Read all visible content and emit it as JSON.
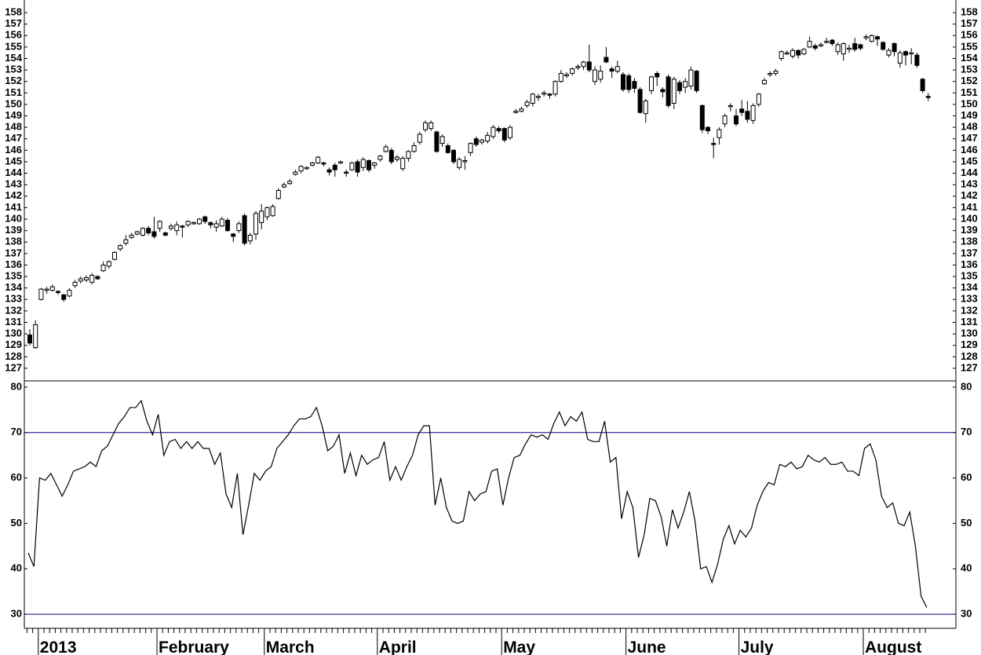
{
  "chart_data": [
    {
      "type": "candlestick",
      "open": [
        129.9,
        128.8,
        133.0,
        133.8,
        133.8,
        133.7,
        133.4,
        133.3,
        134.2,
        134.6,
        134.7,
        134.5,
        135.0,
        135.5,
        135.9,
        136.5,
        137.4,
        137.9,
        138.4,
        138.7,
        138.6,
        139.2,
        138.9,
        139.2,
        138.8,
        139.2,
        139.0,
        139.4,
        139.5,
        139.6,
        139.6,
        140.2,
        139.7,
        139.3,
        139.4,
        139.9,
        138.7,
        139.0,
        140.3,
        138.1,
        138.7,
        139.7,
        140.2,
        140.3,
        141.8,
        142.8,
        143.1,
        143.9,
        144.2,
        144.4,
        144.7,
        144.9,
        144.9,
        144.3,
        144.7,
        144.9,
        144.1,
        144.3,
        145.0,
        144.5,
        145.1,
        144.7,
        145.2,
        145.9,
        146.0,
        145.2,
        144.4,
        145.3,
        145.9,
        146.7,
        147.8,
        147.9,
        147.6,
        146.6,
        146.4,
        146.0,
        144.5,
        145.0,
        145.8,
        147.0,
        146.7,
        146.8,
        147.2,
        147.9,
        147.9,
        147.1,
        149.3,
        149.4,
        149.9,
        150.1,
        150.6,
        150.9,
        150.9,
        150.9,
        152.0,
        152.5,
        152.7,
        153.2,
        153.3,
        153.7,
        152.0,
        152.2,
        154.1,
        153.1,
        152.9,
        152.6,
        152.5,
        152.0,
        151.3,
        149.2,
        151.2,
        152.7,
        151.3,
        152.4,
        150.1,
        151.9,
        151.5,
        151.6,
        152.9,
        149.9,
        148.0,
        146.6,
        147.1,
        148.3,
        149.8,
        149.0,
        149.6,
        149.4,
        148.6,
        150.0,
        151.8,
        152.6,
        152.7,
        154.0,
        154.4,
        154.2,
        154.7,
        154.4,
        155.0,
        155.1,
        155.1,
        155.4,
        155.6,
        154.6,
        154.4,
        154.8,
        155.3,
        155.2,
        155.8,
        155.5,
        155.9,
        155.4,
        154.3,
        155.3,
        153.6,
        154.6,
        154.4,
        154.3,
        152.2,
        150.7
      ],
      "high": [
        130.4,
        131.2,
        134.0,
        134.1,
        134.3,
        133.8,
        133.5,
        134.0,
        134.7,
        135.0,
        135.1,
        135.3,
        135.1,
        136.3,
        136.4,
        137.2,
        137.8,
        138.6,
        138.8,
        139.0,
        139.3,
        139.4,
        140.2,
        139.9,
        138.9,
        139.6,
        139.8,
        139.5,
        139.9,
        139.8,
        140.1,
        140.3,
        139.8,
        139.9,
        140.2,
        140.1,
        138.8,
        139.8,
        140.5,
        138.8,
        140.7,
        141.3,
        141.1,
        141.3,
        142.7,
        143.2,
        143.5,
        144.3,
        144.7,
        144.6,
        145.0,
        145.5,
        145.0,
        144.5,
        144.9,
        145.1,
        144.3,
        145.0,
        145.2,
        145.4,
        145.2,
        145.0,
        145.6,
        146.5,
        146.2,
        145.6,
        145.5,
        146.0,
        146.7,
        147.6,
        148.6,
        148.6,
        147.7,
        147.4,
        146.6,
        146.1,
        145.4,
        145.5,
        146.7,
        147.2,
        147.0,
        147.6,
        148.2,
        148.1,
        148.0,
        148.2,
        149.6,
        149.8,
        150.4,
        151.0,
        150.9,
        151.2,
        151.0,
        152.1,
        153.0,
        152.8,
        153.2,
        153.5,
        153.8,
        155.2,
        153.3,
        153.4,
        155.0,
        153.3,
        153.8,
        152.8,
        152.7,
        152.3,
        151.5,
        150.5,
        152.5,
        152.9,
        151.5,
        152.6,
        152.4,
        152.1,
        152.3,
        153.3,
        153.0,
        150.0,
        148.1,
        147.1,
        148.0,
        149.2,
        150.1,
        149.6,
        150.4,
        150.3,
        150.1,
        151.0,
        152.3,
        152.9,
        153.1,
        154.7,
        154.7,
        154.9,
        154.8,
        154.9,
        155.9,
        155.3,
        155.4,
        155.8,
        155.7,
        155.4,
        155.4,
        155.2,
        155.8,
        155.3,
        156.1,
        156.1,
        156.0,
        155.5,
        154.9,
        155.4,
        154.7,
        154.7,
        154.9,
        154.5,
        152.3,
        151.0
      ],
      "low": [
        129.0,
        128.7,
        132.9,
        133.5,
        133.7,
        133.4,
        132.8,
        133.2,
        134.0,
        134.4,
        134.5,
        134.3,
        134.7,
        135.4,
        135.7,
        136.4,
        137.2,
        137.7,
        138.3,
        138.6,
        138.5,
        138.6,
        138.3,
        138.9,
        138.5,
        139.0,
        138.6,
        138.4,
        139.3,
        139.5,
        139.5,
        139.6,
        139.2,
        138.9,
        139.3,
        138.9,
        138.0,
        138.8,
        137.7,
        137.8,
        138.2,
        139.1,
        139.9,
        140.2,
        141.7,
        142.7,
        143.0,
        143.8,
        144.0,
        144.3,
        144.6,
        144.8,
        144.6,
        143.8,
        143.7,
        144.8,
        143.7,
        144.2,
        143.7,
        144.2,
        144.1,
        144.4,
        145.0,
        145.8,
        144.8,
        145.0,
        144.2,
        145.0,
        145.8,
        146.5,
        147.6,
        147.7,
        145.8,
        146.3,
        145.7,
        144.8,
        144.3,
        144.3,
        145.5,
        146.3,
        146.5,
        146.6,
        147.0,
        147.5,
        146.7,
        146.9,
        149.2,
        149.3,
        149.7,
        149.8,
        150.3,
        150.7,
        150.5,
        150.7,
        151.9,
        152.3,
        152.5,
        153.0,
        153.0,
        152.8,
        151.7,
        151.9,
        153.6,
        152.3,
        152.7,
        151.1,
        151.0,
        151.0,
        149.2,
        148.4,
        150.9,
        151.6,
        150.6,
        149.7,
        149.6,
        150.9,
        151.0,
        151.3,
        151.0,
        147.5,
        147.4,
        145.3,
        146.5,
        148.0,
        149.4,
        148.1,
        149.0,
        148.4,
        148.3,
        149.8,
        151.7,
        152.4,
        152.5,
        153.8,
        154.3,
        154.0,
        154.0,
        154.3,
        154.9,
        154.7,
        155.0,
        155.3,
        155.1,
        154.3,
        153.8,
        154.5,
        154.6,
        154.7,
        155.6,
        155.4,
        155.1,
        154.7,
        154.1,
        154.2,
        153.2,
        153.4,
        153.5,
        153.2,
        151.0,
        150.3
      ],
      "close": [
        129.2,
        130.8,
        133.9,
        133.9,
        134.1,
        133.6,
        133.0,
        133.8,
        134.5,
        134.8,
        134.9,
        135.1,
        134.8,
        136.0,
        136.3,
        137.1,
        137.7,
        138.2,
        138.6,
        138.9,
        139.2,
        138.8,
        138.5,
        139.8,
        138.6,
        139.4,
        139.5,
        139.3,
        139.8,
        139.7,
        140.0,
        139.8,
        139.5,
        139.6,
        140.0,
        139.0,
        138.5,
        139.6,
        137.9,
        138.6,
        140.5,
        140.7,
        141.0,
        141.1,
        142.5,
        143.0,
        143.3,
        144.1,
        144.6,
        144.5,
        144.9,
        145.4,
        144.8,
        144.1,
        144.3,
        145.0,
        144.0,
        144.9,
        144.1,
        145.2,
        144.3,
        144.9,
        145.5,
        146.3,
        145.0,
        145.4,
        145.3,
        145.9,
        146.4,
        147.4,
        148.4,
        148.4,
        145.9,
        147.2,
        145.8,
        145.0,
        145.2,
        145.1,
        146.6,
        146.5,
        146.9,
        147.3,
        148.0,
        147.7,
        146.9,
        148.0,
        149.4,
        149.6,
        150.2,
        150.9,
        150.7,
        151.0,
        150.8,
        152.0,
        152.7,
        152.6,
        153.1,
        153.3,
        153.7,
        153.0,
        153.0,
        152.9,
        153.7,
        152.9,
        153.3,
        151.3,
        151.3,
        151.4,
        149.3,
        150.3,
        152.4,
        152.4,
        151.1,
        149.9,
        152.2,
        151.2,
        152.0,
        153.0,
        151.2,
        147.8,
        147.7,
        146.5,
        147.8,
        149.0,
        149.9,
        148.3,
        149.3,
        148.7,
        149.9,
        150.9,
        152.1,
        152.7,
        152.9,
        154.6,
        154.5,
        154.7,
        154.3,
        154.8,
        155.5,
        154.9,
        155.2,
        155.5,
        155.3,
        155.2,
        155.3,
        154.9,
        154.8,
        154.9,
        155.9,
        156.0,
        155.7,
        154.8,
        154.7,
        154.6,
        154.5,
        154.3,
        154.5,
        153.4,
        151.2,
        150.6
      ],
      "up_color": "#ffffff",
      "down_color": "#000000",
      "ylim": [
        125.9,
        159.1
      ],
      "yticks": [
        127,
        128,
        129,
        130,
        131,
        132,
        133,
        134,
        135,
        136,
        137,
        138,
        139,
        140,
        141,
        142,
        143,
        144,
        145,
        146,
        147,
        148,
        149,
        150,
        151,
        152,
        153,
        154,
        155,
        156,
        157,
        158
      ]
    },
    {
      "type": "line",
      "categories": [
        null,
        null,
        "2013",
        null,
        null,
        null,
        null,
        null,
        null,
        null,
        null,
        null,
        null,
        null,
        null,
        null,
        null,
        null,
        null,
        null,
        null,
        null,
        null,
        "February",
        null,
        null,
        null,
        null,
        null,
        null,
        null,
        null,
        null,
        null,
        null,
        null,
        null,
        null,
        null,
        null,
        null,
        null,
        "March",
        null,
        null,
        null,
        null,
        null,
        null,
        null,
        null,
        null,
        null,
        null,
        null,
        null,
        null,
        null,
        null,
        null,
        null,
        null,
        "April",
        null,
        null,
        null,
        null,
        null,
        null,
        null,
        null,
        null,
        null,
        null,
        null,
        null,
        null,
        null,
        null,
        null,
        null,
        null,
        null,
        null,
        "May",
        null,
        null,
        null,
        null,
        null,
        null,
        null,
        null,
        null,
        null,
        null,
        null,
        null,
        null,
        null,
        null,
        null,
        null,
        null,
        null,
        null,
        "June",
        null,
        null,
        null,
        null,
        null,
        null,
        null,
        null,
        null,
        null,
        null,
        null,
        null,
        null,
        null,
        null,
        null,
        null,
        null,
        "July",
        null,
        null,
        null,
        null,
        null,
        null,
        null,
        null,
        null,
        null,
        null,
        null,
        null,
        null,
        null,
        null,
        null,
        null,
        null,
        null,
        null,
        "August",
        null,
        null,
        null,
        null,
        null,
        null,
        null,
        null,
        null,
        null,
        null
      ],
      "values": [
        43.5,
        40.5,
        60,
        59.5,
        61,
        58.5,
        56,
        58.5,
        61.5,
        62,
        62.5,
        63.5,
        62.5,
        66,
        67,
        69.5,
        72,
        73.5,
        75.5,
        75.5,
        77,
        72.5,
        69.5,
        74,
        65,
        68,
        68.5,
        66.5,
        68,
        66.5,
        68,
        66.5,
        66.5,
        63,
        65.5,
        56.5,
        53.5,
        61,
        47.5,
        54,
        61,
        59.5,
        61.5,
        62.5,
        66.5,
        68,
        69.5,
        71.5,
        73,
        73,
        73.5,
        75.5,
        71.5,
        66,
        67,
        69.5,
        61,
        65.5,
        60.5,
        65,
        63,
        64,
        64.5,
        68,
        59.5,
        62.5,
        59.5,
        62.5,
        65,
        69.5,
        71.5,
        71.5,
        54,
        60,
        53.5,
        50.5,
        50,
        50.5,
        57,
        55,
        56.5,
        57,
        61.5,
        62,
        54,
        60,
        64.5,
        65,
        67.5,
        69.5,
        69,
        69.5,
        68.5,
        72,
        74.5,
        71.5,
        73.5,
        72.5,
        74.5,
        68.5,
        68,
        68,
        72.5,
        63.5,
        64.5,
        51,
        57,
        53.5,
        42.5,
        47.5,
        55.5,
        55,
        51.5,
        45,
        53,
        49,
        52.5,
        57,
        50.5,
        40,
        40.5,
        37,
        41,
        46.5,
        49.5,
        45.5,
        48.5,
        47,
        49,
        54,
        57,
        59,
        58.5,
        63,
        62.5,
        63.5,
        62,
        62.5,
        65,
        64,
        63.5,
        64.5,
        63,
        63,
        63.5,
        61.5,
        61.5,
        60.5,
        66.5,
        67.5,
        64,
        56,
        53.5,
        54.5,
        50,
        49.5,
        52.5,
        45,
        34,
        31.5
      ],
      "color": "#000000",
      "ylim": [
        26.9,
        81.2
      ],
      "yticks": [
        30,
        40,
        50,
        60,
        70,
        80
      ],
      "reference_lines": [
        70,
        30
      ],
      "reference_color": "#000080"
    }
  ]
}
